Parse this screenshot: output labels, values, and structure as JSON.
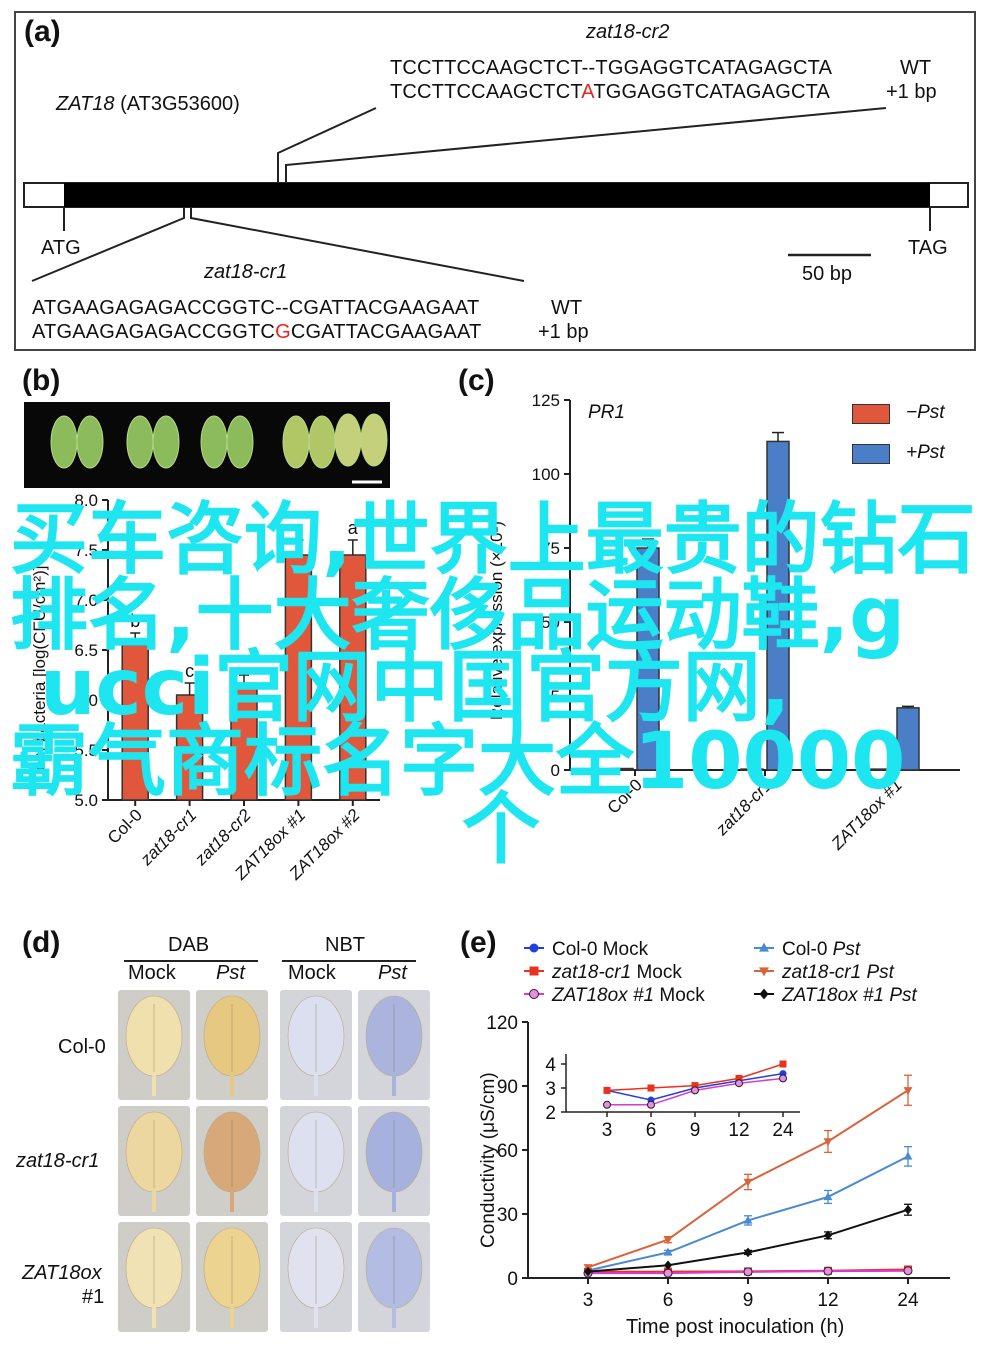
{
  "panel_a": {
    "label": "(a)",
    "gene": "ZAT18",
    "locus": "(AT3G53600)",
    "cr2": {
      "name": "zat18-cr2",
      "wt_seq": "TCCTTCCAAGCTCT--TGGAGGTCATAGAGCTA",
      "mut_pre": "TCCTTCCAAGCTCT",
      "mut_ins": "A",
      "mut_post": "TGGAGGTCATAGAGCTA",
      "wt_label": "WT",
      "mut_label": "+1 bp"
    },
    "cr1": {
      "name": "zat18-cr1",
      "wt_seq": "ATGAAGAGAGACCGGTC--CGATTACGAAGAAT",
      "mut_pre": "ATGAAGAGAGACCGGTC",
      "mut_ins": "G",
      "mut_post": "CGATTACGAAGAAT",
      "wt_label": "WT",
      "mut_label": "+1 bp"
    },
    "start": "ATG",
    "stop": "TAG",
    "scale": "50 bp"
  },
  "panel_b": {
    "label": "(b)",
    "ylabel": "Leaf bacteria [log(CFU/cm²)]",
    "chart_data": {
      "type": "bar",
      "categories": [
        "Col-0",
        "zat18-cr1",
        "zat18-cr2",
        "ZAT18ox #1",
        "ZAT18ox #2"
      ],
      "values": [
        6.55,
        6.05,
        6.15,
        7.45,
        7.45
      ],
      "errors": [
        0.12,
        0.12,
        0.1,
        0.15,
        0.15
      ],
      "letters": [
        "b",
        "c",
        "",
        "",
        "a"
      ],
      "ylim": [
        5.0,
        8.0
      ],
      "yticks": [
        "5.0",
        "5.5",
        "6.0",
        "6.5",
        "7.0",
        "7.5",
        "8.0"
      ],
      "color": "#e0573b"
    }
  },
  "panel_c": {
    "label": "(c)",
    "gene": "PR1",
    "ylabel": "Relative expression (×10²)",
    "legend_minus": "−Pst",
    "legend_plus": "+Pst",
    "chart_data": {
      "type": "bar",
      "categories": [
        "Col-0",
        "zat18-cr1",
        "ZAT18ox #1"
      ],
      "series": [
        {
          "name": "−Pst",
          "color": "#e0573b",
          "values": [
            0.5,
            0.3,
            0.3
          ]
        },
        {
          "name": "+Pst",
          "color": "#4a7fc8",
          "values": [
            75,
            111,
            21
          ]
        }
      ],
      "errors": [
        3,
        3,
        0.5
      ],
      "ylim": [
        0,
        125
      ],
      "yticks": [
        "0",
        "25",
        "50",
        "75",
        "100",
        "125"
      ]
    }
  },
  "panel_d": {
    "label": "(d)",
    "group1": "DAB",
    "group2": "NBT",
    "columns": [
      "Mock",
      "Pst",
      "Mock",
      "Pst"
    ],
    "rows": [
      "Col-0",
      "zat18-cr1",
      "ZAT18ox",
      "#1"
    ]
  },
  "panel_e": {
    "label": "(e)",
    "legend": [
      {
        "name": "Col-0",
        "suffix": "Mock",
        "color": "#1f3fe0",
        "marker": "circle"
      },
      {
        "name": "Col-0",
        "suffix": "Pst",
        "color": "#4a8ad0",
        "marker": "triangle-up"
      },
      {
        "name": "zat18-cr1",
        "suffix": "Mock",
        "color": "#e8321e",
        "marker": "square"
      },
      {
        "name": "zat18-cr1",
        "suffix": "Pst",
        "color": "#d8643a",
        "marker": "triangle-down"
      },
      {
        "name": "ZAT18ox #1",
        "suffix": "Mock",
        "color": "#d83ad0",
        "marker": "circle-open"
      },
      {
        "name": "ZAT18ox #1",
        "suffix": "Pst",
        "color": "#111111",
        "marker": "diamond"
      }
    ],
    "chart_data": {
      "type": "line",
      "xlabel": "Time post inoculation (h)",
      "ylabel": "Conductivity (μS/cm)",
      "x": [
        3,
        6,
        9,
        12,
        24
      ],
      "xticks": [
        "3",
        "6",
        "9",
        "12",
        "24"
      ],
      "ylim": [
        0,
        120
      ],
      "yticks": [
        "0",
        "30",
        "60",
        "90",
        "120"
      ],
      "series": [
        {
          "name": "Col-0 Mock",
          "color": "#1f3fe0",
          "values": [
            2.9,
            2.5,
            3.0,
            3.3,
            3.6
          ]
        },
        {
          "name": "Col-0 Pst",
          "color": "#4a8ad0",
          "values": [
            3.5,
            12,
            27,
            38,
            57
          ]
        },
        {
          "name": "zat18-cr1 Mock",
          "color": "#e8321e",
          "values": [
            2.9,
            3.0,
            3.1,
            3.4,
            4.0
          ]
        },
        {
          "name": "zat18-cr1 Pst",
          "color": "#d8643a",
          "values": [
            5,
            18,
            45,
            64,
            88
          ]
        },
        {
          "name": "ZAT18ox #1 Mock",
          "color": "#d83ad0",
          "values": [
            2.3,
            2.3,
            2.9,
            3.2,
            3.4
          ]
        },
        {
          "name": "ZAT18ox #1 Pst",
          "color": "#111111",
          "values": [
            3,
            6,
            12,
            20,
            32
          ]
        }
      ],
      "inset": {
        "ylim": [
          2,
          4
        ],
        "yticks": [
          "2",
          "3",
          "4"
        ],
        "xticks": [
          "3",
          "6",
          "9",
          "12",
          "24"
        ]
      }
    }
  },
  "overlay_text": [
    "买车咨询,世界上最贵的钻石",
    "排名,十大奢侈品运动鞋,g",
    "ucci官网中国官方网,",
    "霸气商标名字大全10000",
    "个"
  ]
}
